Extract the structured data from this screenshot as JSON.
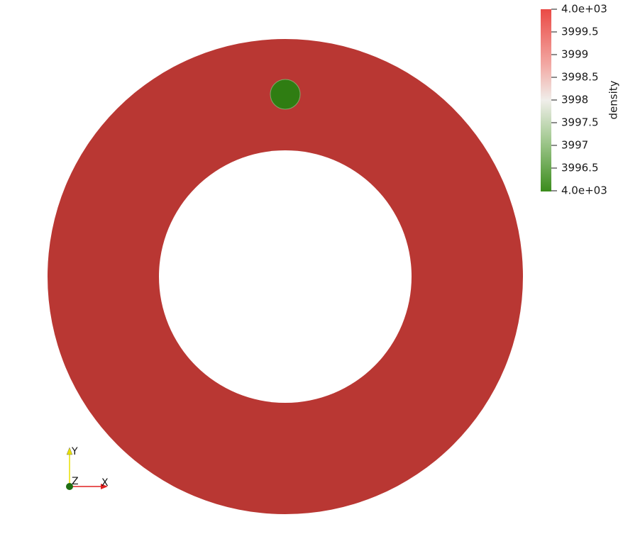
{
  "color_legend": {
    "title": "density",
    "labels": [
      "4.0e+03",
      "3999.5",
      "3999",
      "3998.5",
      "3998",
      "3997.5",
      "3997",
      "3996.5",
      "4.0e+03"
    ]
  },
  "axes": {
    "x": "X",
    "y": "Y",
    "z": "Z"
  }
}
